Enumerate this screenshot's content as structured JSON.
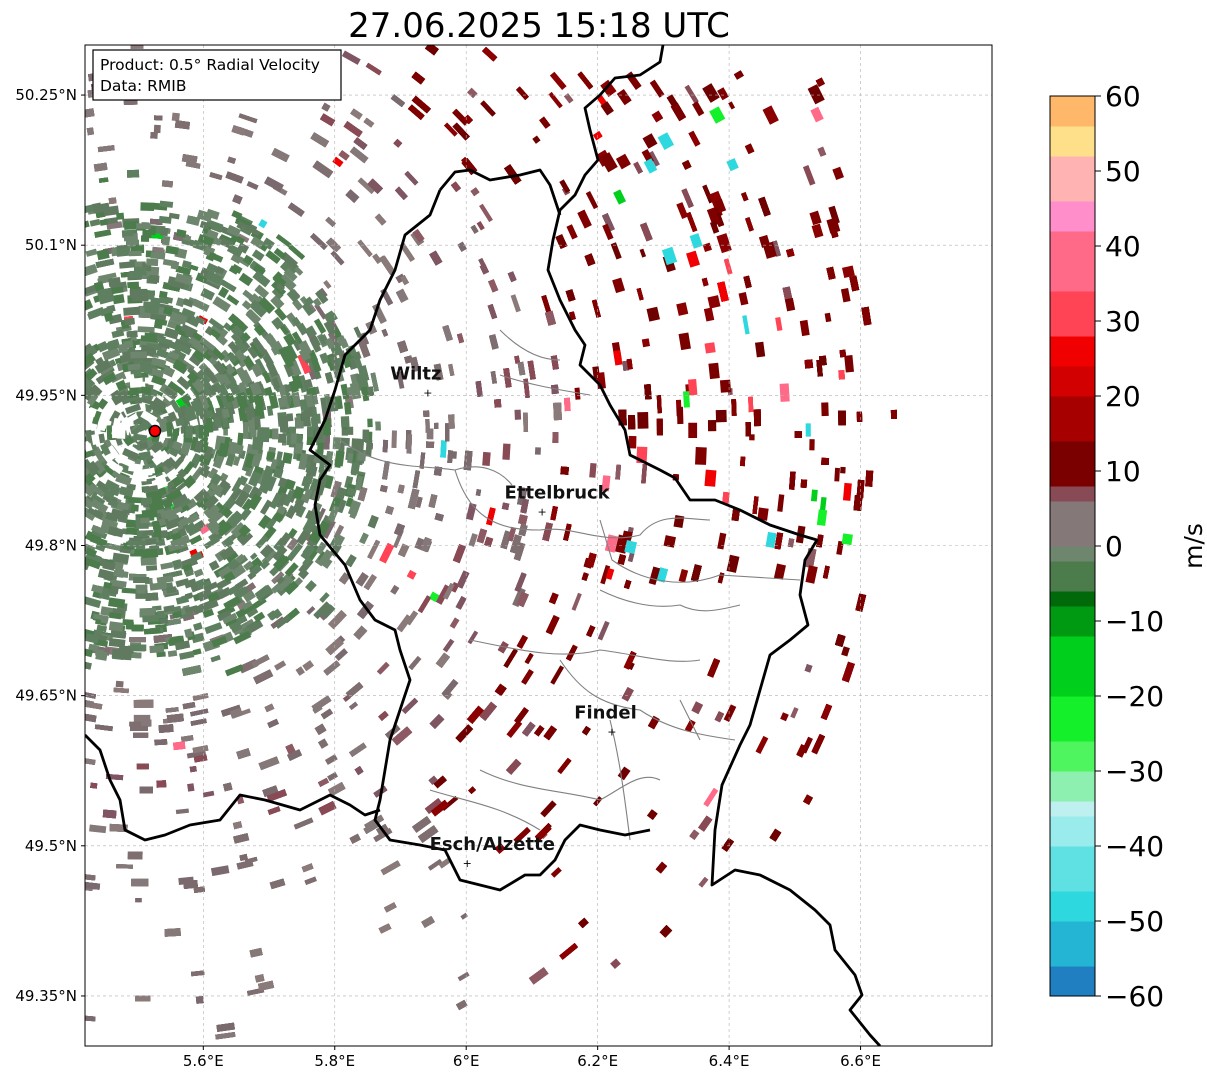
{
  "title": "27.06.2025 15:18 UTC",
  "info_box": {
    "product": "Product: 0.5° Radial Velocity",
    "data": "Data: RMIB"
  },
  "axes": {
    "lat_ticks": [
      "50.25°N",
      "50.1°N",
      "49.95°N",
      "49.8°N",
      "49.65°N",
      "49.5°N",
      "49.35°N"
    ],
    "lon_ticks": [
      "5.6°E",
      "5.8°E",
      "6°E",
      "6.2°E",
      "6.4°E",
      "6.6°E"
    ],
    "lat_values": [
      50.25,
      50.1,
      49.95,
      49.8,
      49.65,
      49.5,
      49.35
    ],
    "lon_values": [
      5.6,
      5.8,
      6.0,
      6.2,
      6.4,
      6.6
    ],
    "extent": {
      "lon_min": 5.42,
      "lon_max": 6.8,
      "lat_min": 49.3,
      "lat_max": 50.3
    }
  },
  "cities": [
    {
      "name": "Wiltz",
      "lon": 5.93,
      "lat": 49.966
    },
    {
      "name": "Ettelbruck",
      "lon": 6.104,
      "lat": 49.847
    },
    {
      "name": "Findel",
      "lon": 6.21,
      "lat": 49.627
    },
    {
      "name": "Esch/Alzette",
      "lon": 5.99,
      "lat": 49.496
    }
  ],
  "radar_site": {
    "lon": 5.505,
    "lat": 49.914
  },
  "colorbar": {
    "label": "m/s",
    "ticks": [
      "60",
      "50",
      "40",
      "30",
      "20",
      "10",
      "0",
      "−10",
      "−20",
      "−30",
      "−40",
      "−50",
      "−60"
    ],
    "tick_values": [
      60,
      50,
      40,
      30,
      20,
      10,
      0,
      -10,
      -20,
      -30,
      -40,
      -50,
      -60
    ],
    "min": -60,
    "max": 60,
    "color_stops": [
      {
        "v": -60,
        "c": "#1f7fc0"
      },
      {
        "v": -55,
        "c": "#25b5d4"
      },
      {
        "v": -50,
        "c": "#2ed8df"
      },
      {
        "v": -45,
        "c": "#5fe0e3"
      },
      {
        "v": -40,
        "c": "#9aebeb"
      },
      {
        "v": -36,
        "c": "#bff0f0"
      },
      {
        "v": -34,
        "c": "#8ef0b0"
      },
      {
        "v": -30,
        "c": "#4ef55f"
      },
      {
        "v": -26,
        "c": "#14f029"
      },
      {
        "v": -20,
        "c": "#00cf1b"
      },
      {
        "v": -12,
        "c": "#009a12"
      },
      {
        "v": -7,
        "c": "#006a0a"
      },
      {
        "v": -6,
        "c": "#4c7c4c"
      },
      {
        "v": -1,
        "c": "#6d866d"
      },
      {
        "v": 1,
        "c": "#857878"
      },
      {
        "v": 6,
        "c": "#884a55"
      },
      {
        "v": 8,
        "c": "#7a0000"
      },
      {
        "v": 15,
        "c": "#a60000"
      },
      {
        "v": 21,
        "c": "#d20000"
      },
      {
        "v": 25,
        "c": "#f00000"
      },
      {
        "v": 29,
        "c": "#ff4455"
      },
      {
        "v": 35,
        "c": "#ff6a88"
      },
      {
        "v": 42,
        "c": "#ff8ecb"
      },
      {
        "v": 47,
        "c": "#ffb3b3"
      },
      {
        "v": 52,
        "c": "#ffe08a"
      },
      {
        "v": 56,
        "c": "#ffb76a"
      },
      {
        "v": 60,
        "c": "#ff9a55"
      }
    ]
  },
  "colors": {
    "border": "#000000",
    "canton_border": "#808080",
    "grid": "#b0b0b0",
    "radar_site": "#ff0000",
    "neg_velocity": "#5f8060",
    "near_zero": "#857878",
    "pos_velocity": "#7a0000"
  }
}
